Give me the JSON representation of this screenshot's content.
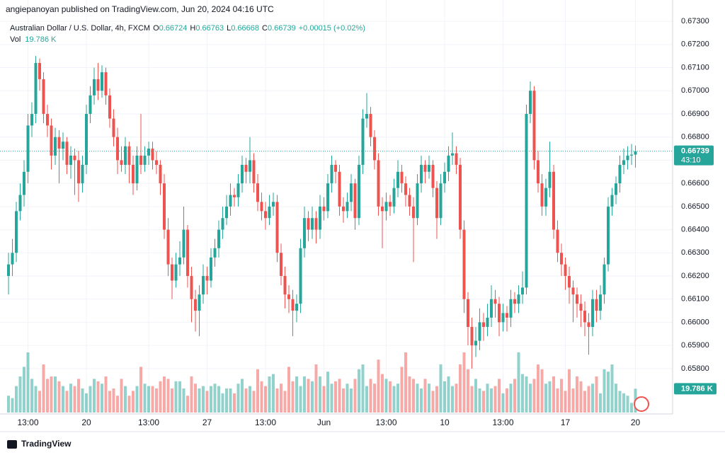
{
  "header": {
    "publisher": "angiepanoyan published on TradingView.com, Jun 20, 2024 04:16 UTC"
  },
  "footer": {
    "brand": "TradingView"
  },
  "chart_data": {
    "type": "candlestick",
    "title": "Australian Dollar / U.S. Dollar, 4h, FXCM",
    "legend_ohlc": [
      {
        "label": "O",
        "value": 0.66724
      },
      {
        "label": "H",
        "value": 0.66763
      },
      {
        "label": "L",
        "value": 0.66668
      },
      {
        "label": "C",
        "value": 0.66739
      }
    ],
    "change": "+0.00015 (+0.02%)",
    "volume_title": "Vol",
    "volume_label": "19.786 K",
    "countdown": "43:10",
    "up_color": "#26a69a",
    "down_color": "#ef5350",
    "ylim": [
      0.65604,
      0.67392
    ],
    "yticks": [
      {
        "value": 0.658,
        "label": "0.65800"
      },
      {
        "value": 0.659,
        "label": "0.65900"
      },
      {
        "value": 0.66,
        "label": "0.66000"
      },
      {
        "value": 0.661,
        "label": "0.66100"
      },
      {
        "value": 0.662,
        "label": "0.66200"
      },
      {
        "value": 0.663,
        "label": "0.66300"
      },
      {
        "value": 0.664,
        "label": "0.66400"
      },
      {
        "value": 0.665,
        "label": "0.66500"
      },
      {
        "value": 0.666,
        "label": "0.66600"
      },
      {
        "value": 0.667,
        "label": "0.66700"
      },
      {
        "value": 0.668,
        "label": "0.66800"
      },
      {
        "value": 0.669,
        "label": "0.66900"
      },
      {
        "value": 0.67,
        "label": "0.67000"
      },
      {
        "value": 0.671,
        "label": "0.67100"
      },
      {
        "value": 0.672,
        "label": "0.67200"
      },
      {
        "value": 0.673,
        "label": "0.67300"
      }
    ],
    "xticks": [
      {
        "value": 5,
        "label": "13:00"
      },
      {
        "value": 20,
        "label": "20"
      },
      {
        "value": 36,
        "label": "13:00"
      },
      {
        "value": 51,
        "label": "27"
      },
      {
        "value": 66,
        "label": "13:00"
      },
      {
        "value": 81,
        "label": "Jun"
      },
      {
        "value": 97,
        "label": "13:00"
      },
      {
        "value": 112,
        "label": "10"
      },
      {
        "value": 127,
        "label": "13:00"
      },
      {
        "value": 143,
        "label": "17"
      },
      {
        "value": 161,
        "label": "20"
      }
    ],
    "grid": true,
    "candles": [
      [
        0.662,
        0.663,
        0.6612,
        0.6625
      ],
      [
        0.6625,
        0.6636,
        0.662,
        0.663
      ],
      [
        0.663,
        0.6652,
        0.6626,
        0.6648
      ],
      [
        0.6648,
        0.666,
        0.6644,
        0.6655
      ],
      [
        0.6655,
        0.667,
        0.665,
        0.6665
      ],
      [
        0.6665,
        0.669,
        0.666,
        0.6685
      ],
      [
        0.6685,
        0.6695,
        0.668,
        0.669
      ],
      [
        0.669,
        0.6715,
        0.6686,
        0.6712
      ],
      [
        0.6712,
        0.6714,
        0.67,
        0.6705
      ],
      [
        0.6705,
        0.6708,
        0.6686,
        0.669
      ],
      [
        0.669,
        0.6694,
        0.668,
        0.6685
      ],
      [
        0.6685,
        0.6688,
        0.6666,
        0.6672
      ],
      [
        0.6672,
        0.6684,
        0.6668,
        0.668
      ],
      [
        0.668,
        0.6683,
        0.666,
        0.6675
      ],
      [
        0.6675,
        0.6682,
        0.667,
        0.6678
      ],
      [
        0.6678,
        0.668,
        0.6664,
        0.6668
      ],
      [
        0.6668,
        0.6676,
        0.6662,
        0.6672
      ],
      [
        0.6672,
        0.6675,
        0.6655,
        0.667
      ],
      [
        0.667,
        0.6674,
        0.6652,
        0.666
      ],
      [
        0.666,
        0.6672,
        0.6656,
        0.6668
      ],
      [
        0.6668,
        0.6694,
        0.6664,
        0.669
      ],
      [
        0.669,
        0.6702,
        0.6686,
        0.6698
      ],
      [
        0.6698,
        0.671,
        0.6694,
        0.6705
      ],
      [
        0.6705,
        0.6712,
        0.6696,
        0.67
      ],
      [
        0.67,
        0.6711,
        0.6697,
        0.6708
      ],
      [
        0.6708,
        0.671,
        0.6694,
        0.6698
      ],
      [
        0.6698,
        0.6701,
        0.6684,
        0.6688
      ],
      [
        0.6688,
        0.6692,
        0.6676,
        0.668
      ],
      [
        0.668,
        0.6684,
        0.6664,
        0.667
      ],
      [
        0.667,
        0.6676,
        0.6665,
        0.6668
      ],
      [
        0.6668,
        0.668,
        0.6664,
        0.6676
      ],
      [
        0.6676,
        0.6678,
        0.666,
        0.6668
      ],
      [
        0.6668,
        0.6672,
        0.6655,
        0.666
      ],
      [
        0.666,
        0.6676,
        0.6657,
        0.6672
      ],
      [
        0.6672,
        0.669,
        0.6664,
        0.6668
      ],
      [
        0.6668,
        0.6676,
        0.6665,
        0.6672
      ],
      [
        0.6672,
        0.6678,
        0.6668,
        0.6675
      ],
      [
        0.6675,
        0.6678,
        0.6666,
        0.667
      ],
      [
        0.667,
        0.6674,
        0.6664,
        0.6668
      ],
      [
        0.6668,
        0.667,
        0.6655,
        0.666
      ],
      [
        0.666,
        0.6664,
        0.6636,
        0.664
      ],
      [
        0.664,
        0.6645,
        0.662,
        0.6625
      ],
      [
        0.6625,
        0.6628,
        0.661,
        0.6618
      ],
      [
        0.6618,
        0.663,
        0.6615,
        0.6625
      ],
      [
        0.6625,
        0.6635,
        0.662,
        0.6628
      ],
      [
        0.6628,
        0.665,
        0.6625,
        0.664
      ],
      [
        0.664,
        0.6642,
        0.6615,
        0.662
      ],
      [
        0.662,
        0.6624,
        0.66,
        0.661
      ],
      [
        0.661,
        0.6614,
        0.6596,
        0.6605
      ],
      [
        0.6605,
        0.6616,
        0.6594,
        0.6612
      ],
      [
        0.6612,
        0.6625,
        0.6608,
        0.662
      ],
      [
        0.662,
        0.6624,
        0.6612,
        0.6618
      ],
      [
        0.6618,
        0.6632,
        0.6615,
        0.6628
      ],
      [
        0.6628,
        0.6636,
        0.6624,
        0.6632
      ],
      [
        0.6632,
        0.6644,
        0.6628,
        0.664
      ],
      [
        0.664,
        0.665,
        0.6636,
        0.6645
      ],
      [
        0.6645,
        0.6655,
        0.6642,
        0.665
      ],
      [
        0.665,
        0.666,
        0.6646,
        0.6655
      ],
      [
        0.6655,
        0.6658,
        0.665,
        0.6654
      ],
      [
        0.6654,
        0.6664,
        0.665,
        0.666
      ],
      [
        0.666,
        0.6672,
        0.6656,
        0.6668
      ],
      [
        0.6668,
        0.6671,
        0.666,
        0.6665
      ],
      [
        0.6665,
        0.668,
        0.666,
        0.667
      ],
      [
        0.667,
        0.6673,
        0.6656,
        0.666
      ],
      [
        0.666,
        0.6664,
        0.6648,
        0.6652
      ],
      [
        0.6652,
        0.6656,
        0.6644,
        0.6648
      ],
      [
        0.6648,
        0.6652,
        0.664,
        0.6645
      ],
      [
        0.6645,
        0.6655,
        0.6642,
        0.665
      ],
      [
        0.665,
        0.6656,
        0.6646,
        0.6652
      ],
      [
        0.6652,
        0.6655,
        0.6626,
        0.663
      ],
      [
        0.663,
        0.6634,
        0.6616,
        0.662
      ],
      [
        0.662,
        0.6624,
        0.6606,
        0.6612
      ],
      [
        0.6612,
        0.6616,
        0.6604,
        0.661
      ],
      [
        0.661,
        0.6614,
        0.6594,
        0.6605
      ],
      [
        0.6605,
        0.6612,
        0.66,
        0.6608
      ],
      [
        0.6608,
        0.6636,
        0.6604,
        0.6632
      ],
      [
        0.6632,
        0.665,
        0.6628,
        0.6645
      ],
      [
        0.6645,
        0.6648,
        0.6635,
        0.664
      ],
      [
        0.664,
        0.665,
        0.6636,
        0.6645
      ],
      [
        0.6645,
        0.6648,
        0.6634,
        0.664
      ],
      [
        0.664,
        0.6655,
        0.6636,
        0.665
      ],
      [
        0.665,
        0.6654,
        0.6644,
        0.6648
      ],
      [
        0.6648,
        0.6664,
        0.6645,
        0.666
      ],
      [
        0.666,
        0.6672,
        0.6656,
        0.6668
      ],
      [
        0.6668,
        0.667,
        0.666,
        0.6665
      ],
      [
        0.6665,
        0.6668,
        0.6646,
        0.665
      ],
      [
        0.665,
        0.6654,
        0.6643,
        0.6648
      ],
      [
        0.6648,
        0.6656,
        0.6645,
        0.6652
      ],
      [
        0.6652,
        0.6664,
        0.6648,
        0.666
      ],
      [
        0.666,
        0.6662,
        0.664,
        0.6645
      ],
      [
        0.6645,
        0.6672,
        0.6642,
        0.6668
      ],
      [
        0.6668,
        0.6692,
        0.6664,
        0.6688
      ],
      [
        0.6688,
        0.6699,
        0.6684,
        0.669
      ],
      [
        0.669,
        0.6693,
        0.6676,
        0.668
      ],
      [
        0.668,
        0.6683,
        0.6666,
        0.667
      ],
      [
        0.667,
        0.6673,
        0.6646,
        0.665
      ],
      [
        0.665,
        0.6654,
        0.6632,
        0.6648
      ],
      [
        0.6648,
        0.6656,
        0.6644,
        0.6652
      ],
      [
        0.6652,
        0.6655,
        0.6646,
        0.665
      ],
      [
        0.665,
        0.6662,
        0.6647,
        0.6658
      ],
      [
        0.6658,
        0.667,
        0.6654,
        0.6665
      ],
      [
        0.6665,
        0.6668,
        0.6656,
        0.666
      ],
      [
        0.666,
        0.6663,
        0.665,
        0.6655
      ],
      [
        0.6655,
        0.6658,
        0.6646,
        0.665
      ],
      [
        0.665,
        0.6654,
        0.6626,
        0.6645
      ],
      [
        0.6645,
        0.6664,
        0.6642,
        0.666
      ],
      [
        0.666,
        0.6672,
        0.6656,
        0.6668
      ],
      [
        0.6668,
        0.667,
        0.666,
        0.6665
      ],
      [
        0.6665,
        0.6672,
        0.6662,
        0.6668
      ],
      [
        0.6668,
        0.667,
        0.6654,
        0.6658
      ],
      [
        0.6658,
        0.6661,
        0.6636,
        0.6645
      ],
      [
        0.6645,
        0.6664,
        0.6642,
        0.666
      ],
      [
        0.666,
        0.6669,
        0.6656,
        0.6665
      ],
      [
        0.6665,
        0.6676,
        0.6661,
        0.6672
      ],
      [
        0.6672,
        0.6682,
        0.6668,
        0.6673
      ],
      [
        0.6673,
        0.6676,
        0.6664,
        0.6668
      ],
      [
        0.6668,
        0.6671,
        0.6636,
        0.664
      ],
      [
        0.664,
        0.6644,
        0.6604,
        0.661
      ],
      [
        0.661,
        0.6613,
        0.659,
        0.6598
      ],
      [
        0.6598,
        0.6602,
        0.658,
        0.659
      ],
      [
        0.659,
        0.6598,
        0.6585,
        0.6592
      ],
      [
        0.6592,
        0.6606,
        0.6588,
        0.66
      ],
      [
        0.66,
        0.6604,
        0.6592,
        0.6598
      ],
      [
        0.6598,
        0.6608,
        0.6594,
        0.6602
      ],
      [
        0.6602,
        0.6616,
        0.6598,
        0.661
      ],
      [
        0.661,
        0.6614,
        0.6602,
        0.6608
      ],
      [
        0.6608,
        0.6611,
        0.6594,
        0.66
      ],
      [
        0.66,
        0.6608,
        0.6596,
        0.6604
      ],
      [
        0.6604,
        0.6607,
        0.6596,
        0.6602
      ],
      [
        0.6602,
        0.6614,
        0.6598,
        0.661
      ],
      [
        0.661,
        0.6613,
        0.6604,
        0.6608
      ],
      [
        0.6608,
        0.6616,
        0.6604,
        0.6612
      ],
      [
        0.6612,
        0.6622,
        0.6608,
        0.6615
      ],
      [
        0.6615,
        0.6694,
        0.6612,
        0.669
      ],
      [
        0.669,
        0.6704,
        0.6686,
        0.67
      ],
      [
        0.67,
        0.6702,
        0.6666,
        0.667
      ],
      [
        0.667,
        0.6674,
        0.6656,
        0.666
      ],
      [
        0.666,
        0.6664,
        0.6646,
        0.665
      ],
      [
        0.665,
        0.6662,
        0.6646,
        0.6658
      ],
      [
        0.6658,
        0.6678,
        0.6654,
        0.6665
      ],
      [
        0.6665,
        0.6668,
        0.6636,
        0.664
      ],
      [
        0.664,
        0.6644,
        0.6626,
        0.663
      ],
      [
        0.663,
        0.6634,
        0.662,
        0.6625
      ],
      [
        0.6625,
        0.6628,
        0.6614,
        0.662
      ],
      [
        0.662,
        0.6624,
        0.6608,
        0.6615
      ],
      [
        0.6615,
        0.6618,
        0.66,
        0.6612
      ],
      [
        0.6612,
        0.6615,
        0.6602,
        0.6608
      ],
      [
        0.6608,
        0.6612,
        0.6598,
        0.6605
      ],
      [
        0.6605,
        0.6609,
        0.6594,
        0.66
      ],
      [
        0.66,
        0.6604,
        0.6586,
        0.6598
      ],
      [
        0.6598,
        0.6614,
        0.6594,
        0.661
      ],
      [
        0.661,
        0.6614,
        0.66,
        0.6605
      ],
      [
        0.6605,
        0.6616,
        0.6601,
        0.6612
      ],
      [
        0.6612,
        0.6628,
        0.6608,
        0.6625
      ],
      [
        0.6625,
        0.6654,
        0.6622,
        0.665
      ],
      [
        0.665,
        0.6658,
        0.6646,
        0.6655
      ],
      [
        0.6655,
        0.6663,
        0.6651,
        0.666
      ],
      [
        0.666,
        0.6672,
        0.6656,
        0.6668
      ],
      [
        0.6668,
        0.6675,
        0.6664,
        0.667
      ],
      [
        0.667,
        0.6676,
        0.6666,
        0.6672
      ],
      [
        0.6672,
        0.6677,
        0.6668,
        0.66724
      ],
      [
        0.66724,
        0.66763,
        0.66668,
        0.66739
      ]
    ],
    "volumes": [
      14,
      12,
      22,
      30,
      38,
      50,
      28,
      22,
      18,
      40,
      28,
      30,
      30,
      26,
      22,
      18,
      24,
      22,
      28,
      20,
      16,
      22,
      28,
      26,
      24,
      30,
      18,
      20,
      14,
      28,
      22,
      14,
      18,
      22,
      38,
      24,
      22,
      22,
      20,
      26,
      30,
      28,
      20,
      26,
      26,
      20,
      14,
      30,
      24,
      20,
      22,
      18,
      22,
      24,
      22,
      16,
      20,
      20,
      16,
      24,
      28,
      20,
      22,
      18,
      36,
      26,
      22,
      30,
      32,
      20,
      24,
      18,
      38,
      26,
      30,
      22,
      30,
      28,
      26,
      40,
      30,
      22,
      34,
      24,
      26,
      28,
      20,
      24,
      20,
      28,
      36,
      40,
      22,
      28,
      24,
      44,
      32,
      28,
      26,
      22,
      24,
      38,
      50,
      30,
      28,
      24,
      20,
      28,
      24,
      18,
      22,
      40,
      26,
      30,
      22,
      24,
      40,
      50,
      36,
      22,
      28,
      20,
      18,
      24,
      20,
      22,
      28,
      16,
      20,
      24,
      28,
      50,
      32,
      30,
      24,
      28,
      40,
      36,
      24,
      26,
      30,
      20,
      28,
      18,
      36,
      20,
      30,
      26,
      18,
      22,
      24,
      30,
      16,
      36,
      34,
      40,
      24,
      18,
      16,
      14,
      8,
      19.786
    ]
  }
}
